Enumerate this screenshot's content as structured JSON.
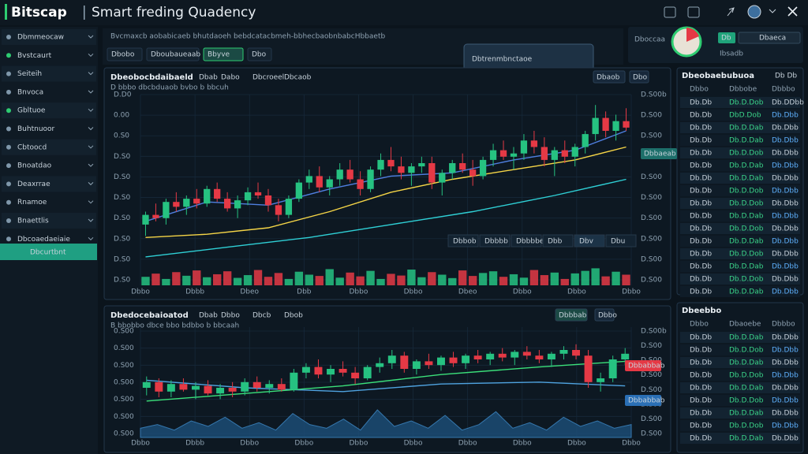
{
  "header": {
    "logo": "Bitscap",
    "title": "Smart freding Quadency"
  },
  "sidebar": {
    "items": [
      "Dbmmeocaw",
      "Bvstcaurt",
      "Seiteih",
      "Bnvoca",
      "Gbltuoe",
      "Buhtnuoor",
      "Cbtoocd",
      "Bnoatdao",
      "Deaxrrae",
      "Rnamoe",
      "Bnaettlis",
      "Dbcoaedaeiaie"
    ],
    "selected": "Dbcurtbnt"
  },
  "toolbar": {
    "text": "Bvcmaxcb aobabicaeb bhutdaoeh bebdcatacbmeh-bbhecbaobnbabcHbbaetb",
    "tabs": [
      "Dbobo",
      "Dboubaueaab",
      "Bbyve",
      "Dbo"
    ],
    "active_tab": 2
  },
  "popup": {
    "label": "Dbtrenmbnctaoe"
  },
  "account": {
    "label": "Dboccaa",
    "caption": "Ibsadb",
    "button": "Db",
    "dropdown": "Dbaeca"
  },
  "charts": [
    {
      "title": "Dbeobocbdaibaeld",
      "tags": [
        "Dbab",
        "Dabo",
        "Dbcroeel",
        "Dbcaob"
      ],
      "subtitle": "D bbbo  dbcbduaob  bvbo  b bbcuh",
      "buttons": [
        "Dbaob",
        "Dbo"
      ],
      "overlay_tabs": [
        "Dbbob",
        "Dbbbb",
        "Dbbbbe",
        "Dbb",
        "Dbv",
        "Dbu"
      ],
      "price_tag": "Dbbaeab",
      "y_labels": [
        "D.D0",
        "0.00",
        "0.S0",
        "D.S0",
        "D.S0",
        "D.S0",
        "D.S0",
        "D.S0",
        "D.S0",
        "D.S0"
      ],
      "right_labels": [
        "D.S00b",
        "D.S00",
        "D.S00",
        "D.S00",
        "D.S00",
        "D.S00",
        "D.S00",
        "D.S00",
        "D.S00",
        "D.S00"
      ],
      "x_labels": [
        "Dbbo",
        "Dbbb",
        "Dbeo",
        "Dbb",
        "Dbbo",
        "Dbbo",
        "Dbeo",
        "Dbbo",
        "Dbbo",
        "Dbbo"
      ],
      "ylim": [
        0,
        100
      ],
      "candles": [
        [
          22,
          30,
          15,
          28
        ],
        [
          28,
          35,
          24,
          26
        ],
        [
          26,
          38,
          22,
          36
        ],
        [
          36,
          42,
          30,
          33
        ],
        [
          33,
          40,
          28,
          38
        ],
        [
          38,
          44,
          32,
          35
        ],
        [
          35,
          46,
          33,
          44
        ],
        [
          44,
          48,
          36,
          38
        ],
        [
          38,
          42,
          30,
          32
        ],
        [
          32,
          40,
          26,
          37
        ],
        [
          37,
          45,
          34,
          42
        ],
        [
          42,
          48,
          38,
          40
        ],
        [
          40,
          44,
          30,
          34
        ],
        [
          34,
          38,
          24,
          28
        ],
        [
          28,
          40,
          26,
          38
        ],
        [
          38,
          50,
          36,
          48
        ],
        [
          48,
          56,
          44,
          52
        ],
        [
          52,
          58,
          42,
          45
        ],
        [
          45,
          52,
          40,
          50
        ],
        [
          50,
          60,
          46,
          56
        ],
        [
          56,
          62,
          48,
          50
        ],
        [
          50,
          55,
          40,
          44
        ],
        [
          44,
          58,
          42,
          56
        ],
        [
          56,
          66,
          52,
          62
        ],
        [
          62,
          70,
          55,
          58
        ],
        [
          58,
          64,
          50,
          54
        ],
        [
          54,
          60,
          46,
          58
        ],
        [
          58,
          64,
          54,
          60
        ],
        [
          60,
          64,
          44,
          48
        ],
        [
          48,
          56,
          40,
          54
        ],
        [
          54,
          62,
          50,
          60
        ],
        [
          60,
          66,
          54,
          56
        ],
        [
          56,
          62,
          46,
          52
        ],
        [
          52,
          64,
          50,
          62
        ],
        [
          62,
          72,
          58,
          68
        ],
        [
          68,
          74,
          62,
          64
        ],
        [
          64,
          70,
          56,
          66
        ],
        [
          66,
          78,
          62,
          74
        ],
        [
          74,
          80,
          66,
          70
        ],
        [
          70,
          76,
          58,
          62
        ],
        [
          62,
          70,
          52,
          68
        ],
        [
          68,
          74,
          60,
          64
        ],
        [
          64,
          72,
          58,
          70
        ],
        [
          70,
          80,
          66,
          78
        ],
        [
          78,
          96,
          74,
          88
        ],
        [
          88,
          92,
          76,
          80
        ],
        [
          80,
          90,
          74,
          86
        ],
        [
          86,
          94,
          80,
          82
        ]
      ],
      "volumes": [
        40,
        55,
        30,
        62,
        45,
        70,
        38,
        52,
        66,
        35,
        48,
        72,
        40,
        58,
        30,
        64,
        50,
        44,
        76,
        36,
        60,
        42,
        68,
        30,
        54,
        46,
        74,
        38,
        62,
        50,
        34,
        70,
        44,
        58,
        66,
        40,
        52,
        36,
        72,
        48,
        60,
        30,
        56,
        68,
        80,
        42,
        64,
        50
      ],
      "lines": [
        {
          "color": "#f5d547",
          "x": [
            0,
            6,
            12,
            18,
            24,
            30,
            36,
            42,
            47
          ],
          "values": [
            14,
            16,
            20,
            30,
            42,
            50,
            56,
            62,
            70
          ]
        },
        {
          "color": "#2fd0d6",
          "x": [
            0,
            8,
            16,
            24,
            32,
            40,
            47
          ],
          "values": [
            2,
            8,
            14,
            22,
            30,
            40,
            50
          ]
        },
        {
          "color": "#4f7fe0",
          "x": [
            0,
            6,
            12,
            18,
            24,
            30,
            36,
            42,
            47
          ],
          "values": [
            24,
            36,
            34,
            44,
            52,
            54,
            62,
            68,
            80
          ]
        }
      ]
    },
    {
      "title": "Dbedocebaioatod",
      "tags": [
        "Dbab",
        "Dbbo",
        "Dbcb",
        "Dbob"
      ],
      "subtitle": "B bbobbo  dbce  bbo  bdbbo  b bbcaah",
      "buttons": [
        "Dbbbab",
        "Dbbo"
      ],
      "price_tag": "Dbbabbab",
      "price_tag2": "Dbbabbab",
      "y_labels": [
        "0.S00",
        "0.S00",
        "0.S00",
        "0.S00",
        "0.S00",
        "0.S00",
        "0.S00"
      ],
      "right_labels": [
        "D.S00b",
        "D.S00",
        "D.S00",
        "D.S00",
        "D.S00",
        "D.S00",
        "D.S00",
        "D.S00"
      ],
      "x_labels": [
        "Dbbo",
        "Dbbb",
        "Dbbo",
        "Dbbo",
        "Dbbo",
        "Dbbo",
        "Dbbo",
        "Dbbo",
        "Dbbo",
        "Dbbo"
      ],
      "ylim": [
        0,
        100
      ],
      "candles": [
        [
          40,
          52,
          32,
          46
        ],
        [
          46,
          50,
          30,
          36
        ],
        [
          36,
          48,
          30,
          44
        ],
        [
          44,
          50,
          36,
          38
        ],
        [
          38,
          46,
          28,
          42
        ],
        [
          42,
          48,
          32,
          34
        ],
        [
          34,
          44,
          28,
          40
        ],
        [
          40,
          46,
          30,
          36
        ],
        [
          36,
          50,
          32,
          46
        ],
        [
          46,
          52,
          36,
          40
        ],
        [
          40,
          48,
          34,
          44
        ],
        [
          44,
          50,
          36,
          38
        ],
        [
          38,
          60,
          36,
          56
        ],
        [
          56,
          66,
          50,
          62
        ],
        [
          62,
          70,
          50,
          54
        ],
        [
          54,
          64,
          46,
          60
        ],
        [
          60,
          68,
          52,
          56
        ],
        [
          56,
          62,
          44,
          50
        ],
        [
          50,
          64,
          48,
          62
        ],
        [
          62,
          72,
          56,
          66
        ],
        [
          66,
          80,
          60,
          74
        ],
        [
          74,
          78,
          56,
          60
        ],
        [
          60,
          70,
          54,
          68
        ],
        [
          68,
          76,
          60,
          64
        ],
        [
          64,
          74,
          58,
          72
        ],
        [
          72,
          78,
          62,
          66
        ],
        [
          66,
          76,
          60,
          74
        ],
        [
          74,
          80,
          66,
          70
        ],
        [
          70,
          78,
          64,
          76
        ],
        [
          76,
          82,
          68,
          72
        ],
        [
          72,
          80,
          64,
          78
        ],
        [
          78,
          84,
          70,
          74
        ],
        [
          74,
          80,
          66,
          70
        ],
        [
          70,
          78,
          62,
          76
        ],
        [
          76,
          84,
          70,
          80
        ],
        [
          80,
          86,
          70,
          74
        ],
        [
          74,
          80,
          40,
          46
        ],
        [
          46,
          56,
          36,
          50
        ],
        [
          50,
          74,
          46,
          70
        ],
        [
          70,
          82,
          64,
          76
        ]
      ],
      "area": [
        10,
        14,
        8,
        18,
        12,
        22,
        10,
        16,
        8,
        26,
        14,
        10,
        20,
        8,
        30,
        12,
        18,
        10,
        24,
        8,
        14,
        28,
        10,
        16,
        8,
        22,
        12,
        18,
        10,
        14
      ],
      "lines": [
        {
          "color": "#4fa3e0",
          "x": [
            0,
            8,
            16,
            24,
            32,
            39
          ],
          "values": [
            48,
            40,
            36,
            44,
            46,
            42
          ]
        },
        {
          "color": "#3be07a",
          "x": [
            0,
            8,
            16,
            24,
            32,
            39
          ],
          "values": [
            26,
            34,
            42,
            54,
            62,
            68
          ]
        }
      ]
    }
  ],
  "order_books": [
    {
      "title": "Dbeobaebubuoa",
      "extra": "Db Db",
      "columns": [
        "Dbbo",
        "Dbbobe",
        "Dbbbo"
      ],
      "rows": [
        [
          "Db.Db",
          "Db.D.Dob",
          "Db.DDbb"
        ],
        [
          "Db.Db",
          "DbD.Dob",
          "Db.Dbb"
        ],
        [
          "Db.Db",
          "Db.D.Dab",
          "Db.Dbb"
        ],
        [
          "Db.Db",
          "Db.D.Dab",
          "Db.Dbb"
        ],
        [
          "Db.Db",
          "Db.D.Dob",
          "Db.Dbb"
        ],
        [
          "Db.Db",
          "Db.D.Dab",
          "Db.Dbb"
        ],
        [
          "Db.Db",
          "Db.D.Dab",
          "Db.Dbb"
        ],
        [
          "Db.Db",
          "Db.D.Dob",
          "Db.Dbb"
        ],
        [
          "Db.Db",
          "Db.D.Dob",
          "Db.Dbb"
        ],
        [
          "Db.Db",
          "Db.D.Dab",
          "Db.Dbb"
        ],
        [
          "Db.Db",
          "Db.D.Dob",
          "Db.Dbb"
        ],
        [
          "Db.Db",
          "Db.D.Dab",
          "Db.Dbb"
        ],
        [
          "Db.Db",
          "Db.D.Dob",
          "Db.Dbb"
        ],
        [
          "Db.Db",
          "Db.D.Dab",
          "Db.Dbb"
        ],
        [
          "Db.Db",
          "Db.D.Dob",
          "Db.Dbb"
        ],
        [
          "Db.Db",
          "Db.D.Dab",
          "Db.Dbb"
        ]
      ]
    },
    {
      "title": "Dbeebbo",
      "columns": [
        "Dbbo",
        "Dbaoebe",
        "Dbbbo"
      ],
      "rows": [
        [
          "Db.Db",
          "Db.D.Dab",
          "Db.Dbb"
        ],
        [
          "Db.Db",
          "Db.D.Dob",
          "Db.Dbb"
        ],
        [
          "Db.Db",
          "Db.D.Dab",
          "Db.Dbb"
        ],
        [
          "Db.Db",
          "Db.D.Dob",
          "Db.Dbb"
        ],
        [
          "Db.Db",
          "Db.D.Dab",
          "Db.Dbb"
        ],
        [
          "Db.Db",
          "Db.D.Dob",
          "Db.Dbb"
        ],
        [
          "Db.Db",
          "Db.D.Dab",
          "Db.Dbb"
        ],
        [
          "Db.Db",
          "Db.D.Dob",
          "Db.Dbb"
        ],
        [
          "Db.Db",
          "Db.D.Dab",
          "Db.Dbb"
        ]
      ]
    }
  ]
}
